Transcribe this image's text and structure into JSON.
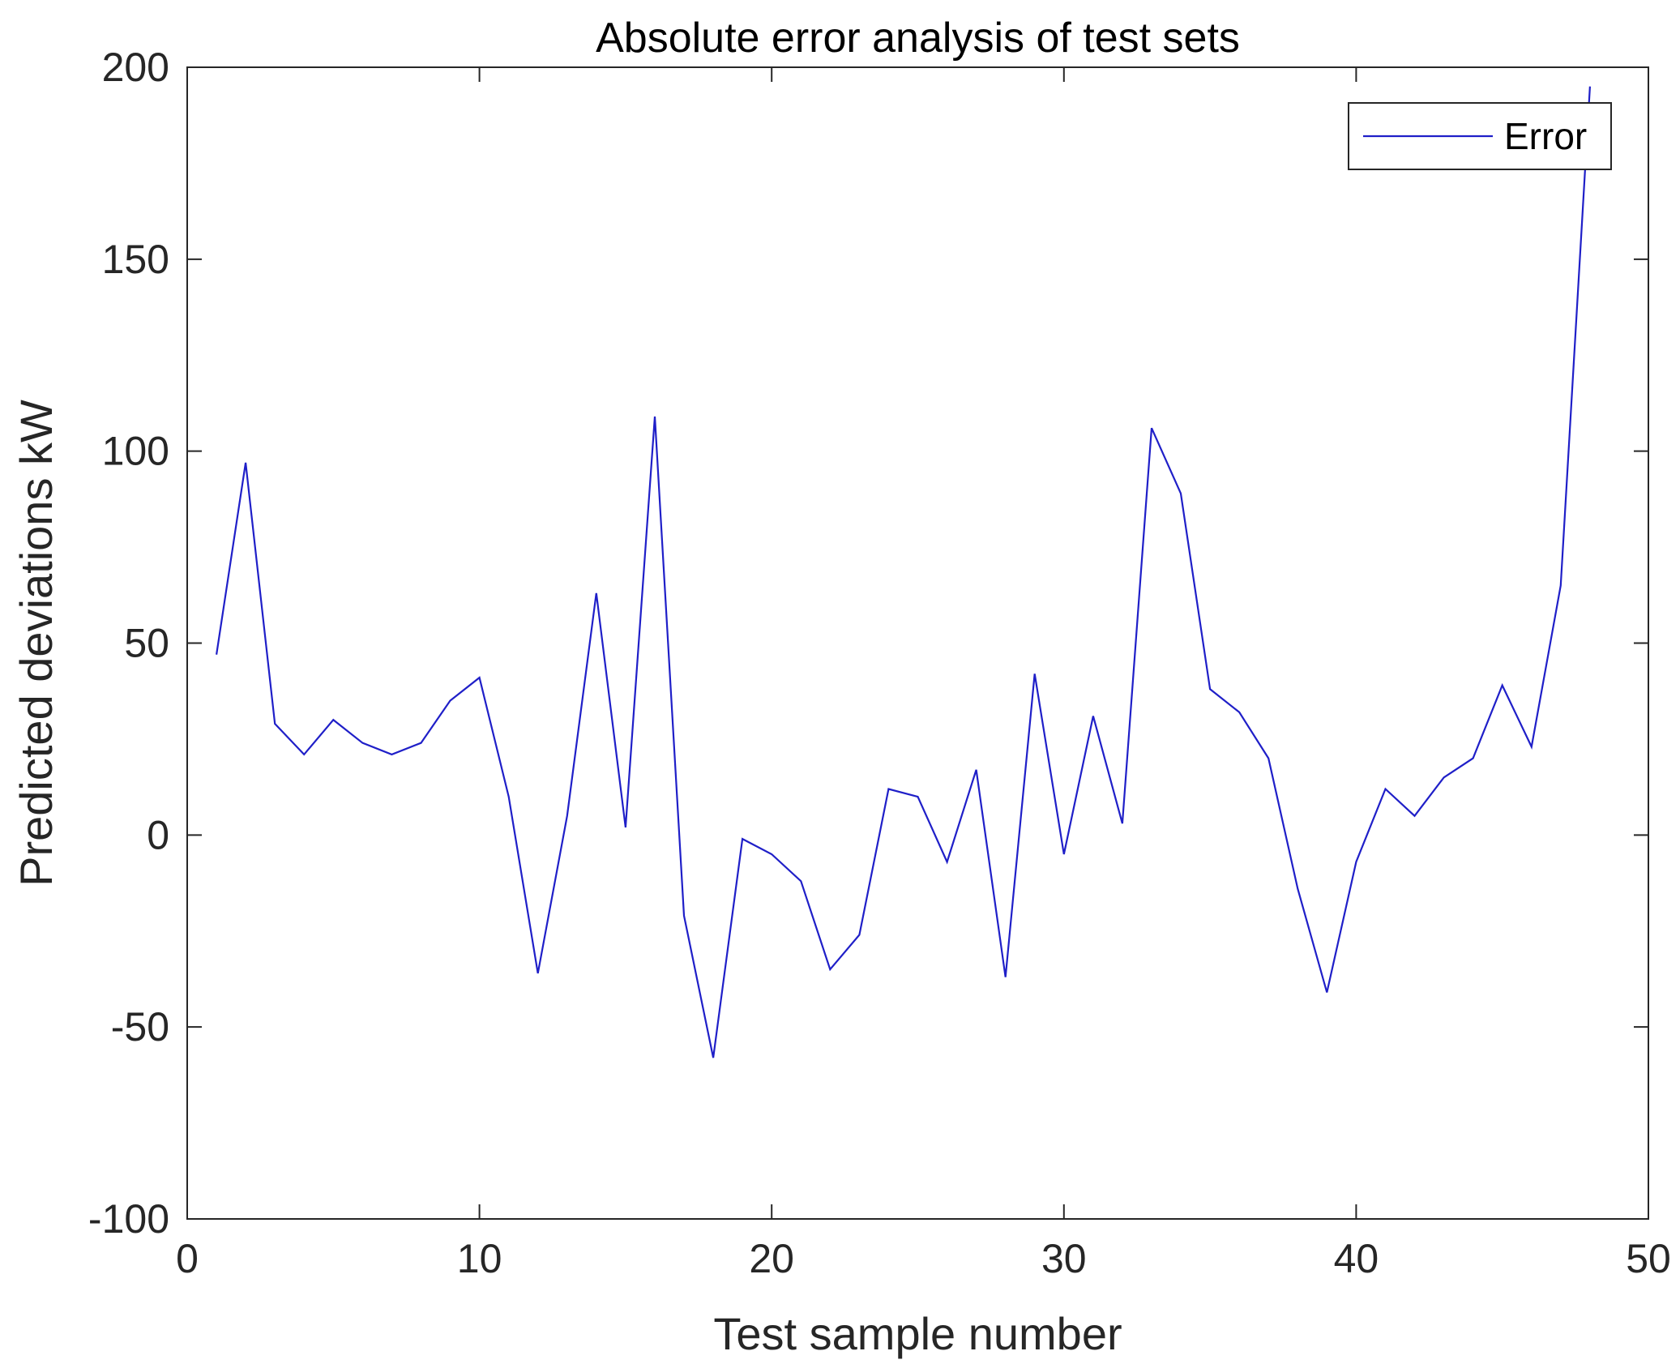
{
  "chart_data": {
    "type": "line",
    "title": "Absolute error analysis of test sets",
    "xlabel": "Test sample number",
    "ylabel": "Predicted deviations kW",
    "xlim": [
      0,
      50
    ],
    "ylim": [
      -100,
      200
    ],
    "xticks": [
      0,
      10,
      20,
      30,
      40,
      50
    ],
    "yticks": [
      -100,
      -50,
      0,
      50,
      100,
      150,
      200
    ],
    "grid": false,
    "legend_position": "top-right",
    "line_color": "#1f1fc8",
    "series": [
      {
        "name": "Error",
        "x": [
          1,
          2,
          3,
          4,
          5,
          6,
          7,
          8,
          9,
          10,
          11,
          12,
          13,
          14,
          15,
          16,
          17,
          18,
          19,
          20,
          21,
          22,
          23,
          24,
          25,
          26,
          27,
          28,
          29,
          30,
          31,
          32,
          33,
          34,
          35,
          36,
          37,
          38,
          39,
          40,
          41,
          42,
          43,
          44,
          45,
          46,
          47,
          48
        ],
        "values": [
          47,
          97,
          29,
          21,
          30,
          24,
          21,
          24,
          35,
          41,
          10,
          -36,
          5,
          63,
          2,
          109,
          -21,
          -58,
          -1,
          -5,
          -12,
          -35,
          -26,
          12,
          10,
          -7,
          17,
          -37,
          42,
          -5,
          31,
          3,
          106,
          89,
          38,
          32,
          20,
          -14,
          -41,
          -7,
          12,
          5,
          15,
          20,
          39,
          23,
          65,
          195
        ]
      }
    ]
  }
}
